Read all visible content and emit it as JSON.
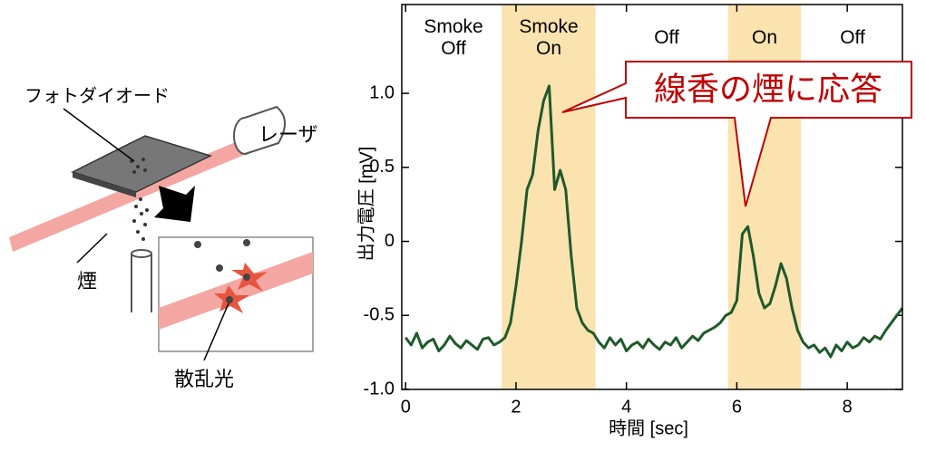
{
  "chart_data": {
    "type": "line",
    "x_label": "時間 [sec]",
    "y_label": "出力電圧 [mV]",
    "x": [
      0.0,
      0.1,
      0.2,
      0.3,
      0.4,
      0.5,
      0.6,
      0.7,
      0.8,
      0.9,
      1.0,
      1.1,
      1.2,
      1.3,
      1.4,
      1.5,
      1.6,
      1.7,
      1.8,
      1.9,
      2.0,
      2.1,
      2.2,
      2.3,
      2.4,
      2.5,
      2.6,
      2.7,
      2.8,
      2.9,
      3.0,
      3.1,
      3.2,
      3.3,
      3.4,
      3.5,
      3.6,
      3.7,
      3.8,
      3.9,
      4.0,
      4.1,
      4.2,
      4.3,
      4.4,
      4.5,
      4.6,
      4.7,
      4.8,
      4.9,
      5.0,
      5.1,
      5.2,
      5.3,
      5.4,
      5.5,
      5.6,
      5.7,
      5.8,
      5.9,
      6.0,
      6.1,
      6.2,
      6.3,
      6.4,
      6.5,
      6.6,
      6.7,
      6.8,
      6.9,
      7.0,
      7.1,
      7.2,
      7.3,
      7.4,
      7.5,
      7.6,
      7.7,
      7.8,
      7.9,
      8.0,
      8.1,
      8.2,
      8.3,
      8.4,
      8.5,
      8.6,
      8.7,
      8.8,
      8.9,
      9.0
    ],
    "series": [
      {
        "color": "#1f5a2a",
        "values": [
          -0.65,
          -0.7,
          -0.62,
          -0.72,
          -0.68,
          -0.66,
          -0.74,
          -0.7,
          -0.64,
          -0.69,
          -0.72,
          -0.67,
          -0.7,
          -0.73,
          -0.66,
          -0.65,
          -0.7,
          -0.68,
          -0.65,
          -0.55,
          -0.3,
          0.0,
          0.35,
          0.45,
          0.75,
          0.95,
          1.05,
          0.35,
          0.48,
          0.35,
          -0.1,
          -0.45,
          -0.55,
          -0.6,
          -0.62,
          -0.68,
          -0.72,
          -0.65,
          -0.7,
          -0.66,
          -0.74,
          -0.7,
          -0.68,
          -0.72,
          -0.66,
          -0.7,
          -0.73,
          -0.68,
          -0.7,
          -0.65,
          -0.72,
          -0.68,
          -0.64,
          -0.67,
          -0.62,
          -0.6,
          -0.58,
          -0.55,
          -0.5,
          -0.48,
          -0.4,
          0.05,
          0.1,
          -0.1,
          -0.35,
          -0.45,
          -0.42,
          -0.3,
          -0.15,
          -0.25,
          -0.45,
          -0.6,
          -0.68,
          -0.72,
          -0.7,
          -0.75,
          -0.72,
          -0.78,
          -0.7,
          -0.74,
          -0.68,
          -0.72,
          -0.7,
          -0.65,
          -0.68,
          -0.64,
          -0.66,
          -0.6,
          -0.55,
          -0.5,
          -0.45
        ]
      }
    ],
    "xlim": [
      -0.07,
      9.0
    ],
    "xticks": [
      0,
      2,
      4,
      6,
      8
    ],
    "ylim": [
      -1.0,
      1.6
    ],
    "yticks": [
      {
        "value": -1,
        "label": "-1.0"
      },
      -0.5,
      0,
      0.5,
      {
        "value": 1,
        "label": "1.0"
      }
    ],
    "shaded_regions": [
      [
        1.74,
        3.44
      ],
      [
        5.84,
        7.16
      ]
    ],
    "shade_color": "#fbe3b0",
    "region_labels": [
      "Smoke\nOff",
      "Smoke\nOn",
      "Off",
      "On",
      "Off"
    ],
    "callout": "線香の煙に応答"
  },
  "diagram": {
    "photodiode": "フォトダイオード",
    "laser": "レーザ",
    "smoke": "煙",
    "scatter": "散乱光"
  }
}
